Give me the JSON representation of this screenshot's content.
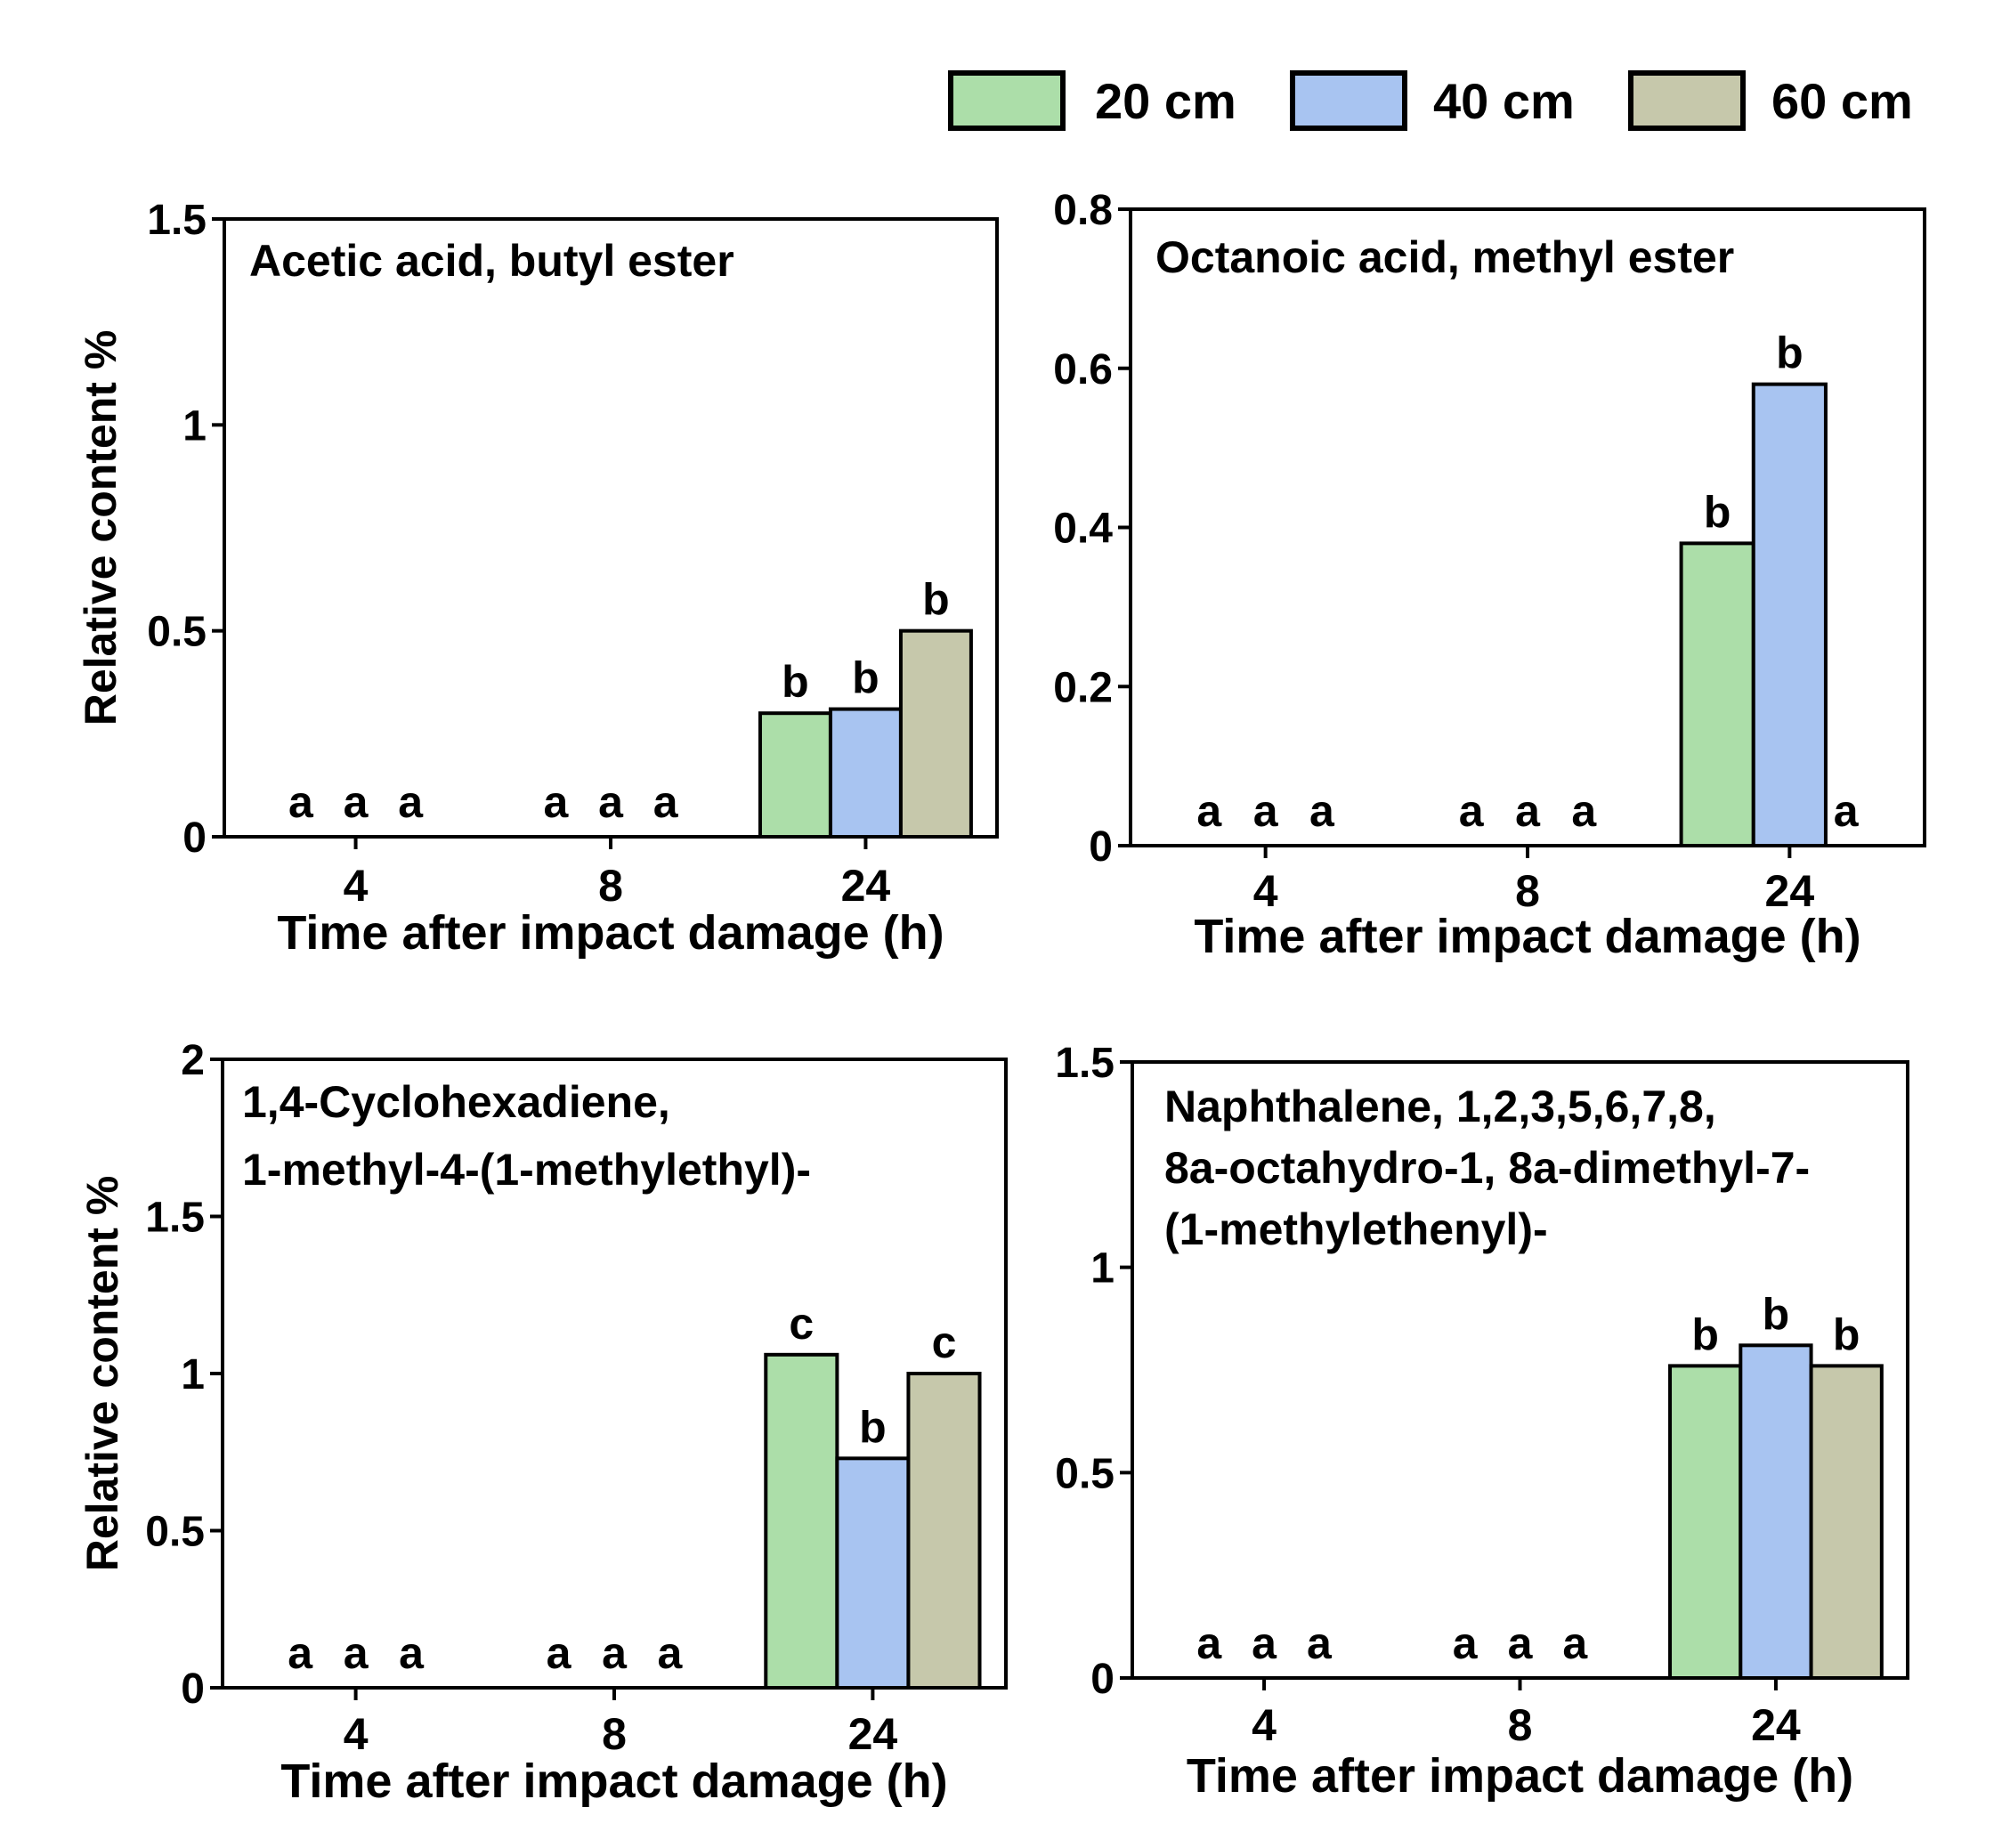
{
  "legend": {
    "items": [
      {
        "label": "20 cm",
        "color": "#acdea9"
      },
      {
        "label": "40 cm",
        "color": "#a8c4f1"
      },
      {
        "label": "60 cm",
        "color": "#c6c8ab"
      }
    ]
  },
  "chart_data": [
    {
      "type": "bar",
      "title": "Acetic acid, butyl ester",
      "title_lines": [
        "Acetic acid, butyl ester"
      ],
      "xlabel": "Time after impact damage (h)",
      "ylabel": "Relative content %",
      "categories": [
        "4",
        "8",
        "24"
      ],
      "ylim": [
        0,
        1.5
      ],
      "yticks": [
        0,
        0.5,
        1,
        1.5
      ],
      "ytick_labels": [
        "0",
        "0.5",
        "1",
        "1.5"
      ],
      "series": [
        {
          "name": "20 cm",
          "values": [
            0,
            0,
            0.3
          ],
          "letters": [
            "a",
            "a",
            "b"
          ]
        },
        {
          "name": "40 cm",
          "values": [
            0,
            0,
            0.31
          ],
          "letters": [
            "a",
            "a",
            "b"
          ]
        },
        {
          "name": "60 cm",
          "values": [
            0,
            0,
            0.5
          ],
          "letters": [
            "a",
            "a",
            "b"
          ]
        }
      ]
    },
    {
      "type": "bar",
      "title": "Octanoic acid, methyl ester",
      "title_lines": [
        "Octanoic acid, methyl ester"
      ],
      "xlabel": "Time after impact damage (h)",
      "ylabel": "",
      "categories": [
        "4",
        "8",
        "24"
      ],
      "ylim": [
        0,
        0.8
      ],
      "yticks": [
        0,
        0.2,
        0.4,
        0.6,
        0.8
      ],
      "ytick_labels": [
        "0",
        "0.2",
        "0.4",
        "0.6",
        "0.8"
      ],
      "series": [
        {
          "name": "20 cm",
          "values": [
            0,
            0,
            0.38
          ],
          "letters": [
            "a",
            "a",
            "b"
          ]
        },
        {
          "name": "40 cm",
          "values": [
            0,
            0,
            0.58
          ],
          "letters": [
            "a",
            "a",
            "b"
          ]
        },
        {
          "name": "60 cm",
          "values": [
            0,
            0,
            0
          ],
          "letters": [
            "a",
            "a",
            "a"
          ]
        }
      ]
    },
    {
      "type": "bar",
      "title": "1,4-Cyclohexadiene, 1-methyl-4-(1-methylethyl)-",
      "title_lines": [
        "1,4-Cyclohexadiene,",
        "1-methyl-4-(1-methylethyl)-"
      ],
      "xlabel": "Time after impact damage (h)",
      "ylabel": "Relative content %",
      "categories": [
        "4",
        "8",
        "24"
      ],
      "ylim": [
        0,
        2
      ],
      "yticks": [
        0,
        0.5,
        1,
        1.5,
        2
      ],
      "ytick_labels": [
        "0",
        "0.5",
        "1",
        "1.5",
        "2"
      ],
      "series": [
        {
          "name": "20 cm",
          "values": [
            0,
            0,
            1.06
          ],
          "letters": [
            "a",
            "a",
            "c"
          ]
        },
        {
          "name": "40 cm",
          "values": [
            0,
            0,
            0.73
          ],
          "letters": [
            "a",
            "a",
            "b"
          ]
        },
        {
          "name": "60 cm",
          "values": [
            0,
            0,
            1.0
          ],
          "letters": [
            "a",
            "a",
            "c"
          ]
        }
      ]
    },
    {
      "type": "bar",
      "title": "Naphthalene, 1,2,3,5,6,7,8, 8a-octahydro-1, 8a-dimethyl-7- (1-methylethenyl)-",
      "title_lines": [
        "Naphthalene, 1,2,3,5,6,7,8,",
        "8a-octahydro-1, 8a-dimethyl-7-",
        "(1-methylethenyl)-"
      ],
      "xlabel": "Time after impact damage (h)",
      "ylabel": "",
      "categories": [
        "4",
        "8",
        "24"
      ],
      "ylim": [
        0,
        1.5
      ],
      "yticks": [
        0,
        0.5,
        1,
        1.5
      ],
      "ytick_labels": [
        "0",
        "0.5",
        "1",
        "1.5"
      ],
      "series": [
        {
          "name": "20 cm",
          "values": [
            0,
            0,
            0.76
          ],
          "letters": [
            "a",
            "a",
            "b"
          ]
        },
        {
          "name": "40 cm",
          "values": [
            0,
            0,
            0.81
          ],
          "letters": [
            "a",
            "a",
            "b"
          ]
        },
        {
          "name": "60 cm",
          "values": [
            0,
            0,
            0.76
          ],
          "letters": [
            "a",
            "a",
            "b"
          ]
        }
      ]
    }
  ]
}
